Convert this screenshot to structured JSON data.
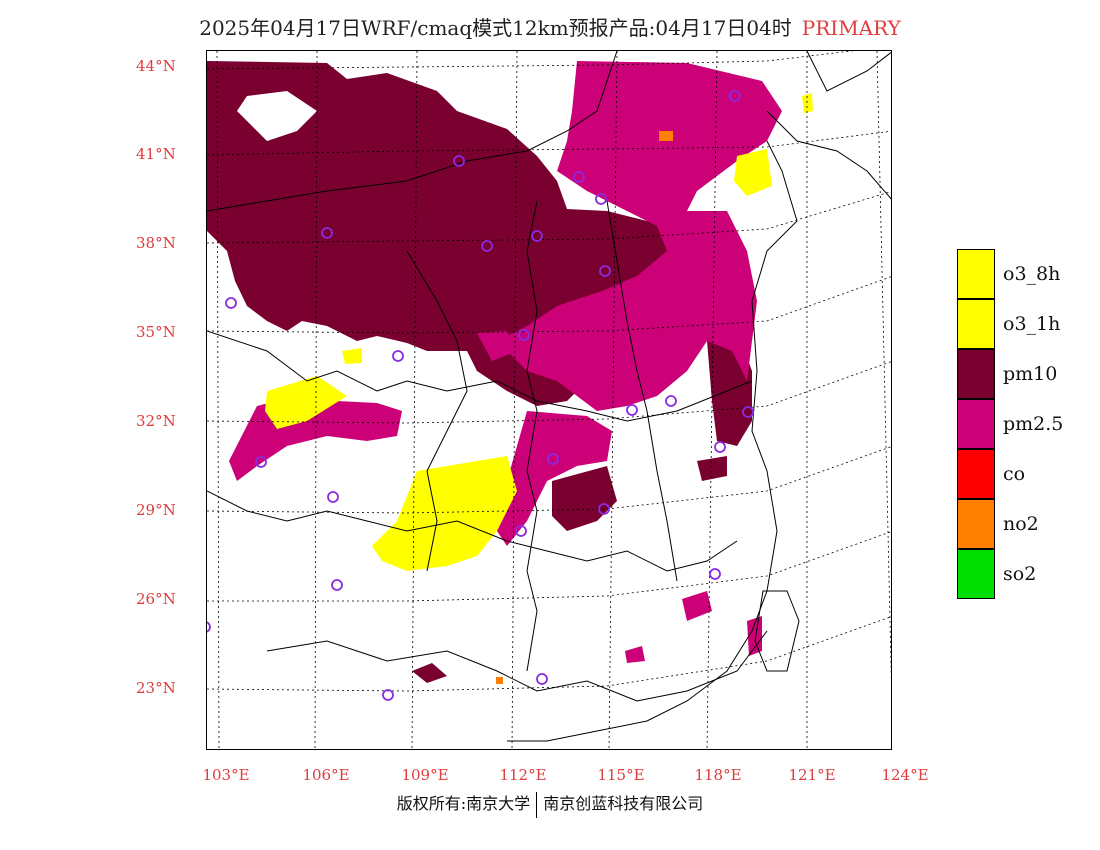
{
  "title": {
    "main": "2025年04月17日WRF/cmaq模式12km预报产品:04月17日04时",
    "tag": "PRIMARY"
  },
  "axes": {
    "lat_labels": [
      "44°N",
      "41°N",
      "38°N",
      "35°N",
      "32°N",
      "29°N",
      "26°N",
      "23°N"
    ],
    "lon_labels": [
      "103°E",
      "106°E",
      "109°E",
      "112°E",
      "115°E",
      "118°E",
      "121°E",
      "124°E"
    ]
  },
  "legend": {
    "items": [
      {
        "label": "o3_8h",
        "color": "#ffff00"
      },
      {
        "label": "o3_1h",
        "color": "#ffff00"
      },
      {
        "label": "pm10",
        "color": "#7a0030"
      },
      {
        "label": "pm2.5",
        "color": "#cc0077"
      },
      {
        "label": "co",
        "color": "#ff0000"
      },
      {
        "label": "no2",
        "color": "#ff7f00"
      },
      {
        "label": "so2",
        "color": "#00dd00"
      }
    ]
  },
  "footer": {
    "left": "版权所有:南京大学",
    "right": "南京创蓝科技有限公司"
  },
  "colors": {
    "pm10": "#7a0030",
    "pm25": "#cc0077",
    "o3": "#ffff00",
    "no2": "#ff7f00",
    "station": "#8a2be2",
    "label": "#e03c3c"
  }
}
